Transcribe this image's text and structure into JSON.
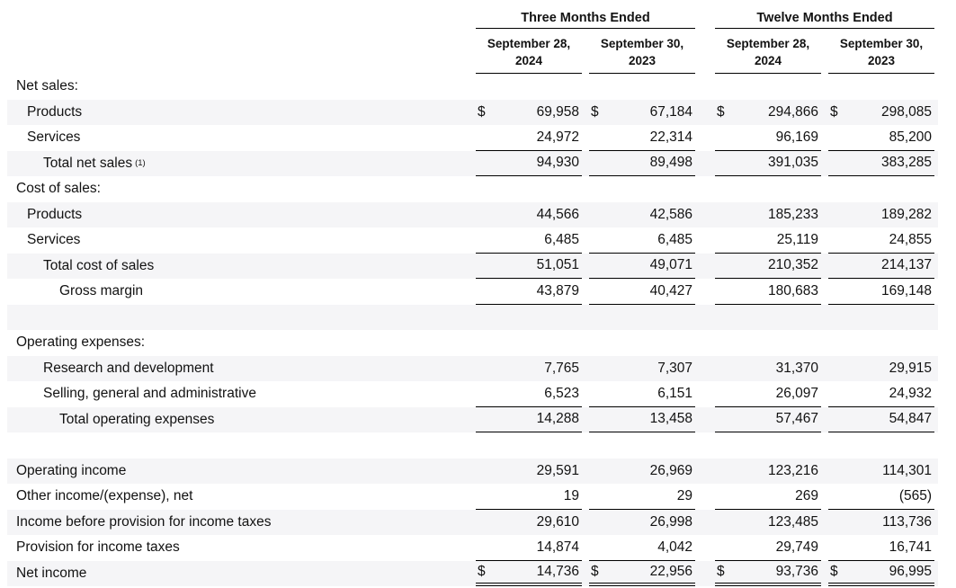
{
  "table": {
    "currency_symbol": "$",
    "groups": [
      "Three Months Ended",
      "Twelve Months Ended"
    ],
    "columns": [
      "September 28,\n2024",
      "September 30,\n2023",
      "September 28,\n2024",
      "September 30,\n2023"
    ],
    "rows": [
      {
        "label": "Net sales:",
        "indent": 0,
        "section": true,
        "values": [
          "",
          "",
          "",
          ""
        ]
      },
      {
        "label": "Products",
        "indent": 1,
        "dollar": true,
        "values": [
          "69,958",
          "67,184",
          "294,866",
          "298,085"
        ]
      },
      {
        "label": "Services",
        "indent": 1,
        "underline": "single",
        "values": [
          "24,972",
          "22,314",
          "96,169",
          "85,200"
        ]
      },
      {
        "label": "Total net sales",
        "note": "(1)",
        "indent": 2,
        "underline": "single",
        "values": [
          "94,930",
          "89,498",
          "391,035",
          "383,285"
        ]
      },
      {
        "label": "Cost of sales:",
        "indent": 0,
        "section": true,
        "values": [
          "",
          "",
          "",
          ""
        ]
      },
      {
        "label": "Products",
        "indent": 1,
        "values": [
          "44,566",
          "42,586",
          "185,233",
          "189,282"
        ]
      },
      {
        "label": "Services",
        "indent": 1,
        "underline": "single",
        "values": [
          "6,485",
          "6,485",
          "25,119",
          "24,855"
        ]
      },
      {
        "label": "Total cost of sales",
        "indent": 2,
        "underline": "single",
        "values": [
          "51,051",
          "49,071",
          "210,352",
          "214,137"
        ]
      },
      {
        "label": "Gross margin",
        "indent": 3,
        "underline": "single",
        "values": [
          "43,879",
          "40,427",
          "180,683",
          "169,148"
        ]
      },
      {
        "label": "",
        "blank": true,
        "values": [
          "",
          "",
          "",
          ""
        ]
      },
      {
        "label": "Operating expenses:",
        "indent": 0,
        "section": true,
        "values": [
          "",
          "",
          "",
          ""
        ]
      },
      {
        "label": "Research and development",
        "indent": 2,
        "values": [
          "7,765",
          "7,307",
          "31,370",
          "29,915"
        ]
      },
      {
        "label": "Selling, general and administrative",
        "indent": 2,
        "underline": "single",
        "values": [
          "6,523",
          "6,151",
          "26,097",
          "24,932"
        ]
      },
      {
        "label": "Total operating expenses",
        "indent": 3,
        "underline": "single",
        "values": [
          "14,288",
          "13,458",
          "57,467",
          "54,847"
        ]
      },
      {
        "label": "",
        "blank": true,
        "values": [
          "",
          "",
          "",
          ""
        ]
      },
      {
        "label": "Operating income",
        "indent": 0,
        "values": [
          "29,591",
          "26,969",
          "123,216",
          "114,301"
        ]
      },
      {
        "label": "Other income/(expense), net",
        "indent": 0,
        "underline": "single",
        "values": [
          "19",
          "29",
          "269",
          "(565)"
        ]
      },
      {
        "label": "Income before provision for income taxes",
        "indent": 0,
        "values": [
          "29,610",
          "26,998",
          "123,485",
          "113,736"
        ]
      },
      {
        "label": "Provision for income taxes",
        "indent": 0,
        "underline": "single",
        "values": [
          "14,874",
          "4,042",
          "29,749",
          "16,741"
        ]
      },
      {
        "label": "Net income",
        "indent": 0,
        "dollar": true,
        "underline": "double",
        "values": [
          "14,736",
          "22,956",
          "93,736",
          "96,995"
        ]
      }
    ]
  }
}
